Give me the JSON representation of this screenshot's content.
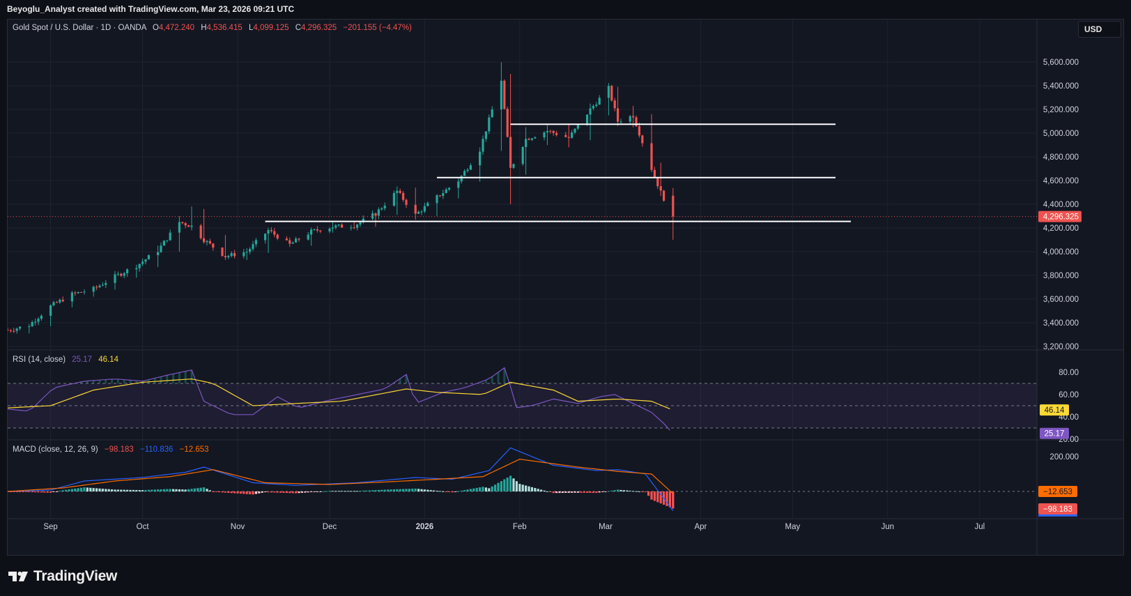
{
  "header": {
    "text": "Beyoglu_Analyst created with TradingView.com, Mar 23, 2026 09:21 UTC"
  },
  "currency_button": "USD",
  "symbol_legend": {
    "name": "Gold Spot / U.S. Dollar · 1D · OANDA",
    "o_label": "O",
    "o_value": "4,472.240",
    "h_label": "H",
    "h_value": "4,536.415",
    "l_label": "L",
    "l_value": "4,099.125",
    "c_label": "C",
    "c_value": "4,296.325",
    "change": "−201.155 (−4.47%)"
  },
  "rsi_legend": {
    "name": "RSI (14, close)",
    "rsi": "25.17",
    "ma": "46.14"
  },
  "macd_legend": {
    "name": "MACD (close, 12, 26, 9)",
    "hist": "−98.183",
    "macd": "−110.836",
    "signal": "−12.653"
  },
  "price_axis_labels": [
    "5,600.000",
    "5,400.000",
    "5,200.000",
    "5,000.000",
    "4,800.000",
    "4,600.000",
    "4,400.000",
    "4,200.000",
    "4,000.000",
    "3,800.000",
    "3,600.000",
    "3,400.000",
    "3,200.000"
  ],
  "price_values": [
    5600,
    5400,
    5200,
    5000,
    4800,
    4600,
    4400,
    4200,
    4000,
    3800,
    3600,
    3400,
    3200
  ],
  "rsi_axis_labels": [
    "80.00",
    "60.00",
    "40.00",
    "20.00"
  ],
  "rsi_axis_values": [
    80,
    60,
    40,
    20
  ],
  "macd_axis_labels": [
    "200.000"
  ],
  "time_axis": [
    "Sep",
    "Oct",
    "Nov",
    "Dec",
    "2026",
    "Feb",
    "Mar",
    "Apr",
    "May",
    "Jun",
    "Jul"
  ],
  "last_price_label": "4,296.325",
  "rsi_badges": {
    "ma": "46.14",
    "rsi": "25.17"
  },
  "macd_badges": {
    "signal": "−12.653",
    "hist": "−98.183"
  },
  "footer": {
    "brand": "TradingView"
  },
  "colors": {
    "up": "#26a69a",
    "down": "#ef5350",
    "rsi": "#7e57c2",
    "rsi_ma": "#fdd835",
    "macd": "#2962ff",
    "signal": "#ff6d00",
    "level": "#ffffff"
  },
  "chart_data": {
    "type": "candlestick",
    "title": "Gold Spot / U.S. Dollar · 1D · OANDA",
    "start_date": "2025-08-18",
    "end_date": "2026-03-23",
    "ylim": [
      3100,
      5700
    ],
    "ohlc_anchors": [
      [
        "2025-08-18",
        3340,
        3350,
        3320,
        3335
      ],
      [
        "2025-08-25",
        3320,
        3390,
        3310,
        3380
      ],
      [
        "2025-09-01",
        3380,
        3550,
        3370,
        3540
      ],
      [
        "2025-09-08",
        3540,
        3650,
        3530,
        3640
      ],
      [
        "2025-09-15",
        3640,
        3700,
        3620,
        3685
      ],
      [
        "2025-09-22",
        3690,
        3800,
        3680,
        3790
      ],
      [
        "2025-09-29",
        3790,
        3890,
        3780,
        3880
      ],
      [
        "2025-10-06",
        3880,
        4050,
        3870,
        4010
      ],
      [
        "2025-10-13",
        4010,
        4300,
        4000,
        4250
      ],
      [
        "2025-10-17",
        4250,
        4381,
        4180,
        4215
      ],
      [
        "2025-10-21",
        4350,
        4360,
        4080,
        4100
      ],
      [
        "2025-10-28",
        4100,
        4140,
        3930,
        3960
      ],
      [
        "2025-11-04",
        3960,
        4030,
        3930,
        4000
      ],
      [
        "2025-11-11",
        4000,
        4200,
        3990,
        4180
      ],
      [
        "2025-11-18",
        4180,
        4120,
        4040,
        4060
      ],
      [
        "2025-11-25",
        4060,
        4180,
        4050,
        4170
      ],
      [
        "2025-12-02",
        4170,
        4260,
        4160,
        4210
      ],
      [
        "2025-12-09",
        4210,
        4250,
        4190,
        4220
      ],
      [
        "2025-12-16",
        4220,
        4330,
        4210,
        4320
      ],
      [
        "2025-12-23",
        4320,
        4550,
        4310,
        4510
      ],
      [
        "2025-12-29",
        4510,
        4540,
        4270,
        4310
      ],
      [
        "2026-01-05",
        4310,
        4480,
        4300,
        4460
      ],
      [
        "2026-01-12",
        4460,
        4620,
        4450,
        4600
      ],
      [
        "2026-01-19",
        4600,
        4880,
        4590,
        4860
      ],
      [
        "2026-01-26",
        4860,
        5598,
        4850,
        5450
      ],
      [
        "2026-01-29",
        5450,
        5500,
        4400,
        4700
      ],
      [
        "2026-02-03",
        4700,
        5050,
        4650,
        4950
      ],
      [
        "2026-02-10",
        4950,
        5080,
        4900,
        5020
      ],
      [
        "2026-02-17",
        5020,
        5070,
        4880,
        4960
      ],
      [
        "2026-02-24",
        4960,
        5250,
        4940,
        5200
      ],
      [
        "2026-03-02",
        5200,
        5420,
        5150,
        5380
      ],
      [
        "2026-03-05",
        5380,
        5390,
        5060,
        5100
      ],
      [
        "2026-03-10",
        5100,
        5230,
        5050,
        5150
      ],
      [
        "2026-03-16",
        5150,
        5160,
        4900,
        4700
      ],
      [
        "2026-03-19",
        4700,
        4750,
        4470,
        4500
      ],
      [
        "2026-03-23",
        4472.24,
        4536.415,
        4099.125,
        4296.325
      ]
    ],
    "horizontal_levels": [
      {
        "price": 5075,
        "from": "2026-01-29",
        "to": "2026-05-15"
      },
      {
        "price": 4625,
        "from": "2026-01-05",
        "to": "2026-05-15"
      },
      {
        "price": 4255,
        "from": "2025-11-10",
        "to": "2026-05-20"
      }
    ],
    "last_close": 4296.325,
    "rsi": {
      "period": 14,
      "ylim": [
        10,
        90
      ],
      "bands": [
        70,
        50,
        30
      ],
      "last_rsi": 25.17,
      "last_ma": 46.14,
      "rsi_anchors": [
        [
          "2025-08-18",
          47
        ],
        [
          "2025-08-25",
          45
        ],
        [
          "2025-09-02",
          66
        ],
        [
          "2025-09-12",
          72
        ],
        [
          "2025-09-22",
          74
        ],
        [
          "2025-10-01",
          72
        ],
        [
          "2025-10-10",
          78
        ],
        [
          "2025-10-17",
          82
        ],
        [
          "2025-10-21",
          54
        ],
        [
          "2025-10-30",
          42
        ],
        [
          "2025-11-06",
          42
        ],
        [
          "2025-11-14",
          58
        ],
        [
          "2025-11-21",
          48
        ],
        [
          "2025-12-01",
          55
        ],
        [
          "2025-12-10",
          60
        ],
        [
          "2025-12-19",
          65
        ],
        [
          "2025-12-26",
          78
        ],
        [
          "2025-12-29",
          52
        ],
        [
          "2026-01-07",
          62
        ],
        [
          "2026-01-14",
          66
        ],
        [
          "2026-01-22",
          74
        ],
        [
          "2026-01-28",
          86
        ],
        [
          "2026-01-30",
          48
        ],
        [
          "2026-02-05",
          50
        ],
        [
          "2026-02-12",
          56
        ],
        [
          "2026-02-20",
          52
        ],
        [
          "2026-02-27",
          58
        ],
        [
          "2026-03-04",
          60
        ],
        [
          "2026-03-10",
          52
        ],
        [
          "2026-03-16",
          44
        ],
        [
          "2026-03-20",
          34
        ],
        [
          "2026-03-23",
          25
        ]
      ],
      "ma_anchors": [
        [
          "2025-08-18",
          48
        ],
        [
          "2025-09-01",
          50
        ],
        [
          "2025-09-15",
          64
        ],
        [
          "2025-10-01",
          71
        ],
        [
          "2025-10-17",
          74
        ],
        [
          "2025-10-24",
          70
        ],
        [
          "2025-11-06",
          50
        ],
        [
          "2025-11-20",
          52
        ],
        [
          "2025-12-05",
          54
        ],
        [
          "2025-12-26",
          65
        ],
        [
          "2026-01-05",
          62
        ],
        [
          "2026-01-20",
          60
        ],
        [
          "2026-01-29",
          71
        ],
        [
          "2026-02-12",
          64
        ],
        [
          "2026-02-20",
          54
        ],
        [
          "2026-03-05",
          56
        ],
        [
          "2026-03-16",
          54
        ],
        [
          "2026-03-23",
          46
        ]
      ]
    },
    "macd": {
      "fast": 12,
      "slow": 26,
      "signal": 9,
      "ylim": [
        -160,
        260
      ],
      "last_hist": -98.183,
      "last_macd": -110.836,
      "last_signal": -12.653,
      "macd_anchors": [
        [
          "2025-08-18",
          0
        ],
        [
          "2025-09-01",
          8
        ],
        [
          "2025-09-12",
          60
        ],
        [
          "2025-10-01",
          80
        ],
        [
          "2025-10-15",
          110
        ],
        [
          "2025-10-21",
          140
        ],
        [
          "2025-11-06",
          50
        ],
        [
          "2025-11-20",
          35
        ],
        [
          "2025-12-10",
          50
        ],
        [
          "2025-12-29",
          80
        ],
        [
          "2026-01-10",
          70
        ],
        [
          "2026-01-22",
          120
        ],
        [
          "2026-01-29",
          250
        ],
        [
          "2026-02-12",
          150
        ],
        [
          "2026-02-26",
          120
        ],
        [
          "2026-03-05",
          125
        ],
        [
          "2026-03-14",
          100
        ],
        [
          "2026-03-23",
          -110.836
        ]
      ],
      "signal_anchors": [
        [
          "2025-08-18",
          0
        ],
        [
          "2025-09-05",
          20
        ],
        [
          "2025-09-22",
          60
        ],
        [
          "2025-10-10",
          85
        ],
        [
          "2025-10-24",
          125
        ],
        [
          "2025-11-10",
          50
        ],
        [
          "2025-12-01",
          40
        ],
        [
          "2025-12-20",
          55
        ],
        [
          "2026-01-05",
          70
        ],
        [
          "2026-01-20",
          85
        ],
        [
          "2026-02-01",
          185
        ],
        [
          "2026-02-20",
          140
        ],
        [
          "2026-03-05",
          115
        ],
        [
          "2026-03-16",
          100
        ],
        [
          "2026-03-23",
          -12.653
        ]
      ]
    }
  }
}
